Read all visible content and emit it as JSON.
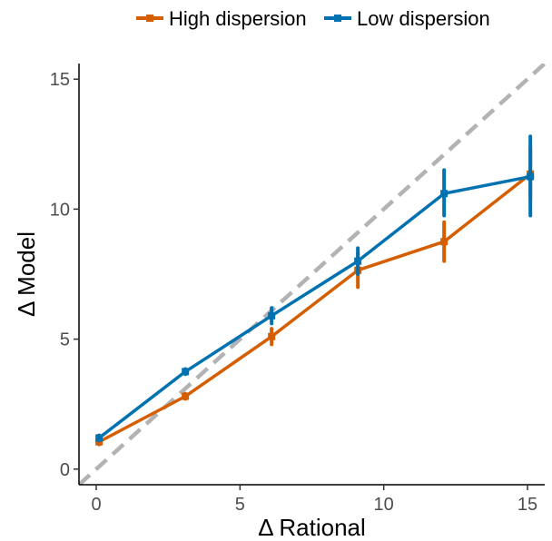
{
  "chart_data": {
    "type": "line",
    "xlabel": "Δ Rational",
    "ylabel": "Δ Model",
    "xlim": [
      -0.6,
      15.6
    ],
    "ylim": [
      -0.6,
      15.6
    ],
    "x_ticks": [
      0,
      5,
      10,
      15
    ],
    "y_ticks": [
      0,
      5,
      10,
      15
    ],
    "grid": false,
    "legend_position": "top",
    "reference_line": {
      "slope": 1,
      "intercept": 0,
      "style": "dashed",
      "color": "#b3b3b3"
    },
    "series": [
      {
        "name": "High dispersion",
        "color": "#d55e00",
        "x": [
          0.1,
          3.1,
          6.1,
          9.1,
          12.1,
          15.1
        ],
        "y": [
          1.05,
          2.8,
          5.1,
          7.65,
          8.75,
          11.35
        ],
        "err_low": [
          0.95,
          2.7,
          4.8,
          7.0,
          8.0,
          10.4
        ],
        "err_high": [
          1.15,
          2.9,
          5.4,
          8.3,
          9.5,
          12.35
        ]
      },
      {
        "name": "Low dispersion",
        "color": "#0072b2",
        "x": [
          0.1,
          3.1,
          6.1,
          9.1,
          12.1,
          15.1
        ],
        "y": [
          1.2,
          3.75,
          5.9,
          8.0,
          10.6,
          11.25
        ],
        "err_low": [
          1.1,
          3.65,
          5.6,
          7.5,
          9.75,
          9.75
        ],
        "err_high": [
          1.3,
          3.85,
          6.2,
          8.5,
          11.5,
          12.8
        ]
      }
    ]
  }
}
